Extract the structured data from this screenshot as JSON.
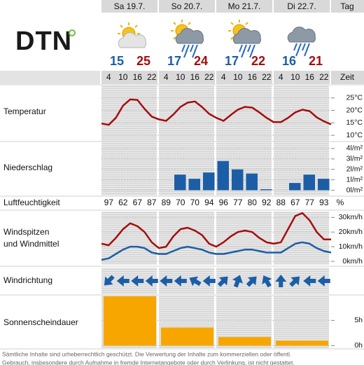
{
  "logo": "DTN",
  "header": {
    "days": [
      "Sa 19.7.",
      "So 20.7.",
      "Mo 21.7.",
      "Di 22.7."
    ],
    "day_label": "Tag",
    "hours": [
      4,
      10,
      16,
      22
    ],
    "time_label": "Zeit"
  },
  "temps": {
    "min": [
      15,
      17,
      17,
      16
    ],
    "max": [
      25,
      24,
      22,
      21
    ]
  },
  "humidity": {
    "title": "Luftfeuchtigkeit",
    "values": [
      97,
      62,
      67,
      87,
      89,
      70,
      70,
      94,
      96,
      77,
      80,
      92,
      88,
      67,
      77,
      93
    ],
    "unit": "%"
  },
  "wind_direction": {
    "title": "Windrichtung",
    "degrees": [
      225,
      270,
      270,
      270,
      270,
      270,
      300,
      270,
      45,
      20,
      45,
      330,
      0,
      45,
      270,
      270
    ]
  },
  "chart_data": [
    {
      "type": "line",
      "title": "Temperatur",
      "x": [
        1,
        4,
        7,
        10,
        13,
        16,
        19,
        22,
        25,
        28,
        31,
        34,
        37,
        40,
        43,
        46,
        49,
        52,
        55,
        58,
        61,
        64,
        67,
        70,
        73,
        76,
        79,
        82,
        85,
        88,
        91,
        94,
        97
      ],
      "series": [
        {
          "color": "#a50d0d",
          "values": [
            14.7,
            14.2,
            17,
            21.9,
            24.4,
            24.2,
            20.6,
            17.5,
            16.4,
            15.8,
            18.3,
            21.4,
            23.1,
            23.6,
            21.4,
            18.6,
            17,
            15.8,
            18.1,
            20.3,
            21.4,
            21.1,
            19.2,
            17,
            15.3,
            15.3,
            17,
            19.2,
            20.3,
            19.7,
            17.2,
            15.6,
            14.4
          ]
        }
      ],
      "xlim": [
        1,
        97
      ],
      "ylim": [
        7.5,
        30
      ],
      "yticks": [
        {
          "value": 25,
          "label": "25°C"
        },
        {
          "value": 20,
          "label": "20°C"
        },
        {
          "value": 15,
          "label": "15°C"
        },
        {
          "value": 10,
          "label": "10°C"
        }
      ]
    },
    {
      "type": "bar",
      "title": "Niederschlag",
      "color": "#1c5ea6",
      "values": [
        0,
        0,
        0,
        0,
        0,
        1.5,
        1.1,
        1.7,
        2.8,
        2.0,
        1.6,
        0.1,
        0,
        0.7,
        1.5,
        1.1
      ],
      "ylim": [
        -0.5,
        4.6
      ],
      "yticks": [
        {
          "value": 4,
          "label": "4l/m²"
        },
        {
          "value": 3,
          "label": "3l/m²"
        },
        {
          "value": 2,
          "label": "2l/m²"
        },
        {
          "value": 1,
          "label": "1l/m²"
        },
        {
          "value": 0,
          "label": "0l/m²"
        }
      ]
    },
    {
      "type": "line",
      "title": [
        "Windspitzen",
        "und Windmittel"
      ],
      "x": [
        1,
        4,
        7,
        10,
        13,
        16,
        19,
        22,
        25,
        28,
        31,
        34,
        37,
        40,
        43,
        46,
        49,
        52,
        55,
        58,
        61,
        64,
        67,
        70,
        73,
        76,
        79,
        82,
        85,
        88,
        91,
        94,
        97
      ],
      "series": [
        {
          "color": "#a50d0d",
          "values": [
            12,
            11,
            16,
            22,
            26,
            24,
            20,
            13,
            9,
            10,
            17,
            22,
            23,
            21,
            18,
            12,
            10,
            13,
            17,
            20,
            21,
            20,
            16,
            13,
            12,
            13,
            22,
            31,
            33,
            28,
            20,
            15,
            15
          ]
        },
        {
          "color": "#1c5ea6",
          "values": [
            1,
            2,
            5,
            8,
            10,
            10,
            9,
            6,
            5,
            5,
            7,
            9,
            10,
            9,
            8,
            6,
            5,
            5,
            6,
            7,
            8,
            8,
            7,
            6,
            6,
            6,
            9,
            12,
            13,
            12,
            9,
            7,
            6
          ]
        }
      ],
      "xlim": [
        1,
        97
      ],
      "ylim": [
        -2.4,
        34
      ],
      "yticks": [
        {
          "value": 30,
          "label": "30km/h"
        },
        {
          "value": 20,
          "label": "20km/h"
        },
        {
          "value": 10,
          "label": "10km/h"
        },
        {
          "value": 0,
          "label": "0km/h"
        }
      ]
    },
    {
      "type": "bar",
      "title": "Sonnenscheindauer",
      "color": "#f7a600",
      "values": [
        9.8,
        3.6,
        1.7,
        1.0
      ],
      "ylim": [
        -0.5,
        9.9
      ],
      "yticks": [
        {
          "value": 5,
          "label": "5h"
        },
        {
          "value": 0,
          "label": "0h"
        }
      ]
    }
  ],
  "footer": [
    "Sämtliche Inhalte sind urheberrechtlich geschützt. Die Verwertung der Inhalte zum kommerziellen oder öffentl.",
    "Gebrauch, insbesondere durch Aufnahme in fremde Internetangebote oder durch Verlinkung, ist nicht gestattet."
  ]
}
